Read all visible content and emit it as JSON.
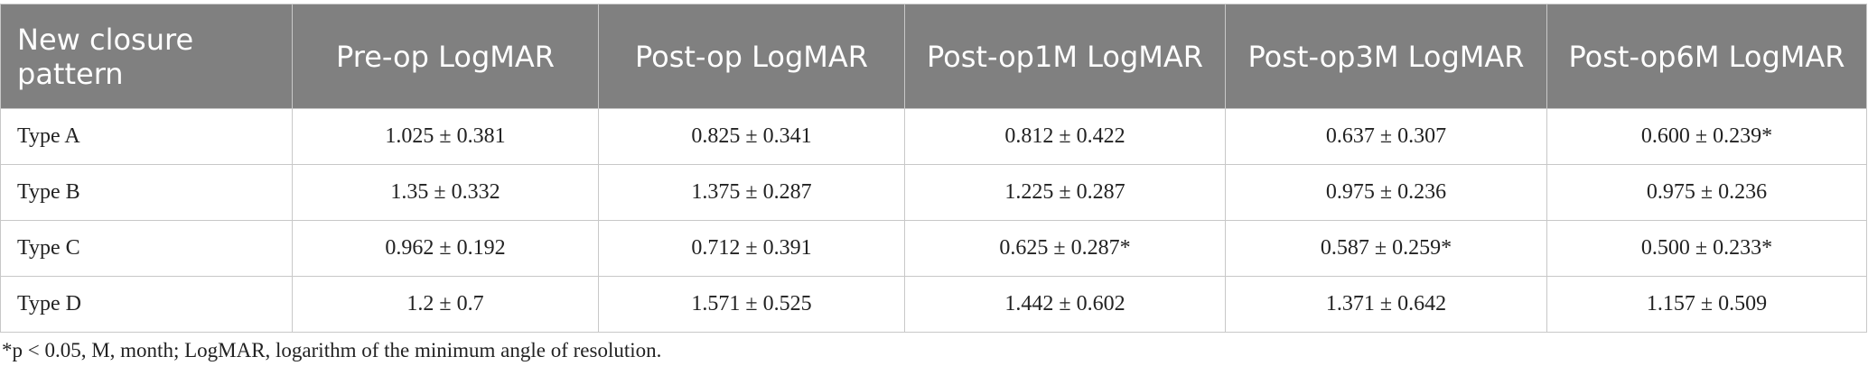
{
  "table": {
    "header": [
      "New closure pattern",
      "Pre-op LogMAR",
      "Post-op LogMAR",
      "Post-op1M LogMAR",
      "Post-op3M LogMAR",
      "Post-op6M LogMAR"
    ],
    "rows": [
      [
        "Type A",
        "1.025 ± 0.381",
        "0.825 ± 0.341",
        "0.812 ± 0.422",
        "0.637 ± 0.307",
        "0.600 ± 0.239*"
      ],
      [
        "Type B",
        "1.35 ± 0.332",
        "1.375 ± 0.287",
        "1.225 ± 0.287",
        "0.975 ± 0.236",
        "0.975 ± 0.236"
      ],
      [
        "Type C",
        "0.962 ± 0.192",
        "0.712 ± 0.391",
        "0.625 ± 0.287*",
        "0.587 ± 0.259*",
        "0.500 ± 0.233*"
      ],
      [
        "Type D",
        "1.2 ± 0.7",
        "1.571 ± 0.525",
        "1.442 ± 0.602",
        "1.371 ± 0.642",
        "1.157 ± 0.509"
      ]
    ]
  },
  "footnote": "*p < 0.05, M, month; LogMAR, logarithm of the minimum angle of resolution."
}
